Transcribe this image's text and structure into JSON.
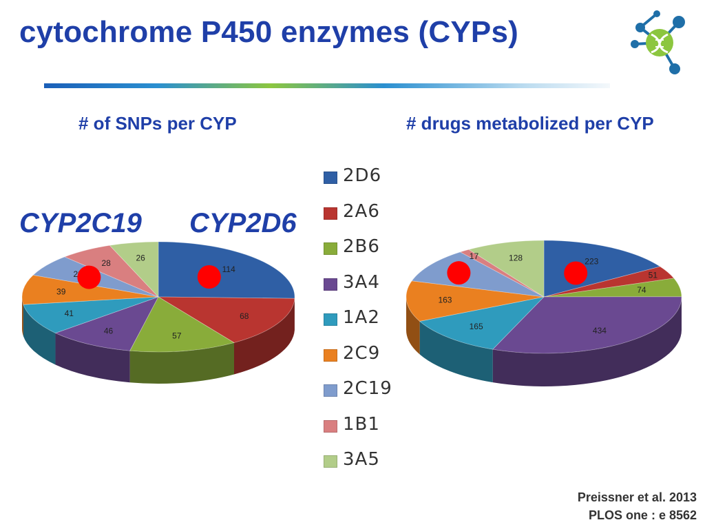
{
  "slide": {
    "title": "cytochrome P450 enzymes (CYPs)",
    "subtitle_left": "# of SNPs per CYP",
    "subtitle_right": "# drugs metabolized per CYP",
    "gene_left": "CYP2C19",
    "gene_right": "CYP2D6",
    "citation_line1": "Preissner et al. 2013",
    "citation_line2": "PLOS one : e 8562",
    "logo_icon": "dna-network-logo-icon",
    "title_color": "#1f3fa8",
    "marker_color": "#ff0000"
  },
  "chart_data": [
    {
      "type": "pie",
      "title": "# of SNPs per CYP",
      "categories": [
        "2D6",
        "2A6",
        "2B6",
        "3A4",
        "1A2",
        "2C9",
        "2C19",
        "1B1",
        "3A5"
      ],
      "values": [
        114,
        68,
        57,
        46,
        41,
        39,
        29,
        28,
        26
      ],
      "colors": [
        "#2f5fa5",
        "#b93530",
        "#89ac3a",
        "#6a4991",
        "#2f9bbd",
        "#ea8020",
        "#7f9ccd",
        "#d97f80",
        "#b2cd89"
      ],
      "highlighted": [
        "2C19",
        "2D6"
      ],
      "legend_position": "right"
    },
    {
      "type": "pie",
      "title": "# drugs metabolized per CYP",
      "categories": [
        "2D6",
        "2A6",
        "2B6",
        "3A4",
        "1A2",
        "2C9",
        "2C19",
        "1B1",
        "3A5"
      ],
      "values": [
        223,
        51,
        74,
        434,
        165,
        163,
        140,
        17,
        128
      ],
      "colors": [
        "#2f5fa5",
        "#b93530",
        "#89ac3a",
        "#6a4991",
        "#2f9bbd",
        "#ea8020",
        "#7f9ccd",
        "#d97f80",
        "#b2cd89"
      ],
      "highlighted": [
        "2C19",
        "2D6"
      ],
      "legend_position": "left"
    }
  ],
  "legend": [
    {
      "label": "2D6",
      "color": "#2f5fa5"
    },
    {
      "label": "2A6",
      "color": "#b93530"
    },
    {
      "label": "2B6",
      "color": "#89ac3a"
    },
    {
      "label": "3A4",
      "color": "#6a4991"
    },
    {
      "label": "1A2",
      "color": "#2f9bbd"
    },
    {
      "label": "2C9",
      "color": "#ea8020"
    },
    {
      "label": "2C19",
      "color": "#7f9ccd"
    },
    {
      "label": "1B1",
      "color": "#d97f80"
    },
    {
      "label": "3A5",
      "color": "#b2cd89"
    }
  ]
}
